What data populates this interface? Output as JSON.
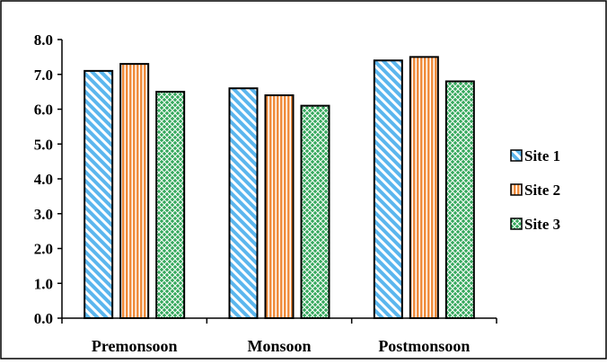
{
  "chart_data": {
    "type": "bar",
    "categories": [
      "Premonsoon",
      "Monsoon",
      "Postmonsoon"
    ],
    "series": [
      {
        "name": "Site 1",
        "values": [
          7.1,
          6.6,
          7.4
        ],
        "color": "#5bb6ee",
        "pattern": "diagonal-stripes"
      },
      {
        "name": "Site 2",
        "values": [
          7.3,
          6.4,
          7.5
        ],
        "color": "#f08c3c",
        "pattern": "vertical-stripes"
      },
      {
        "name": "Site 3",
        "values": [
          6.5,
          6.1,
          6.8
        ],
        "color": "#35a85c",
        "pattern": "lattice"
      }
    ],
    "y_ticks": [
      "0.0",
      "1.0",
      "2.0",
      "3.0",
      "4.0",
      "5.0",
      "6.0",
      "7.0",
      "8.0"
    ],
    "ylim": [
      0,
      8
    ],
    "title": "",
    "xlabel": "",
    "ylabel": "",
    "grid": false,
    "legend_position": "right"
  }
}
